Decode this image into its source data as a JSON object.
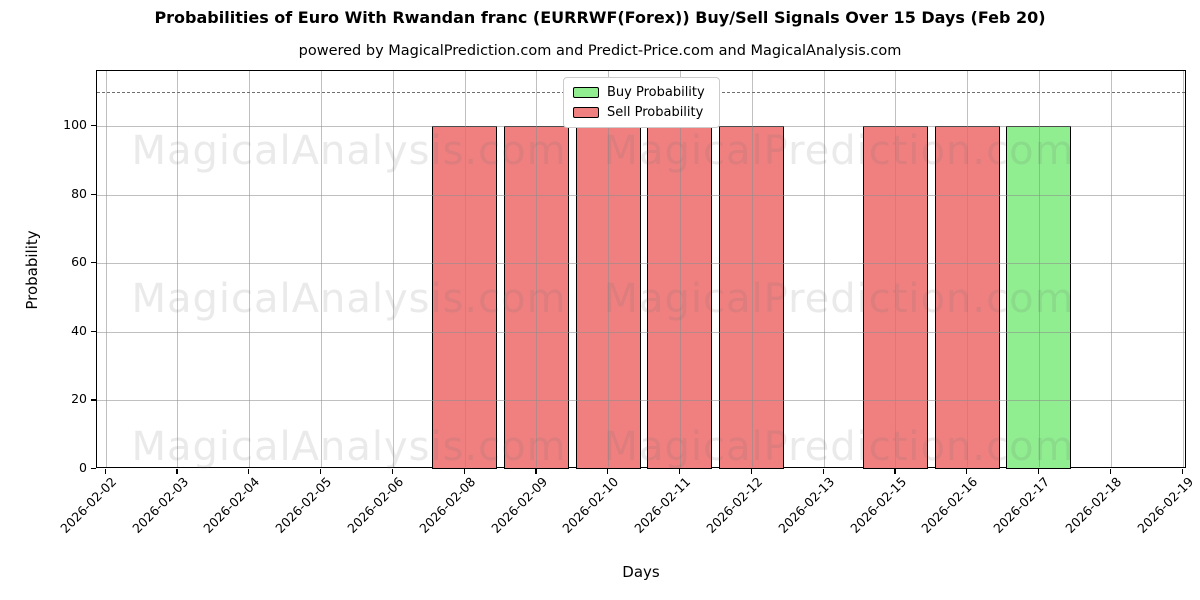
{
  "chart_data": {
    "type": "bar",
    "title": "Probabilities of Euro With Rwandan franc (EURRWF(Forex)) Buy/Sell Signals Over 15 Days (Feb 20)",
    "subtitle": "powered by MagicalPrediction.com and Predict-Price.com and MagicalAnalysis.com",
    "xlabel": "Days",
    "ylabel": "Probability",
    "categories": [
      "2026-02-02",
      "2026-02-03",
      "2026-02-04",
      "2026-02-05",
      "2026-02-06",
      "2026-02-08",
      "2026-02-09",
      "2026-02-10",
      "2026-02-11",
      "2026-02-12",
      "2026-02-13",
      "2026-02-15",
      "2026-02-16",
      "2026-02-17",
      "2026-02-18",
      "2026-02-19"
    ],
    "series": [
      {
        "name": "Buy Probability",
        "key": "buy",
        "color": "#90ee90",
        "values": [
          0,
          0,
          0,
          0,
          0,
          0,
          0,
          0,
          0,
          0,
          0,
          0,
          0,
          100,
          0,
          0
        ]
      },
      {
        "name": "Sell Probability",
        "key": "sell",
        "color": "#f08080",
        "values": [
          0,
          0,
          0,
          0,
          0,
          100,
          100,
          100,
          100,
          100,
          0,
          100,
          100,
          0,
          0,
          0
        ]
      }
    ],
    "yticks": [
      0,
      20,
      40,
      60,
      80,
      100
    ],
    "ylim": [
      0,
      116
    ],
    "dashed_line_y": 110,
    "grid": true,
    "legend_position": "upper center",
    "bar_edge_color": "#000000"
  },
  "legend": {
    "items": [
      {
        "label": "Buy Probability",
        "color": "#90ee90"
      },
      {
        "label": "Sell Probability",
        "color": "#f08080"
      }
    ]
  },
  "watermarks": {
    "left_text": "MagicalAnalysis.com",
    "right_text": "MagicalPrediction.com",
    "rows": 3
  },
  "colors": {
    "buy": "#90ee90",
    "sell": "#f08080",
    "grid": "rgba(140,140,140,0.55)",
    "dashed": "#6e6e6e",
    "spine": "#000000",
    "watermark": "rgba(105,105,105,0.14)"
  }
}
